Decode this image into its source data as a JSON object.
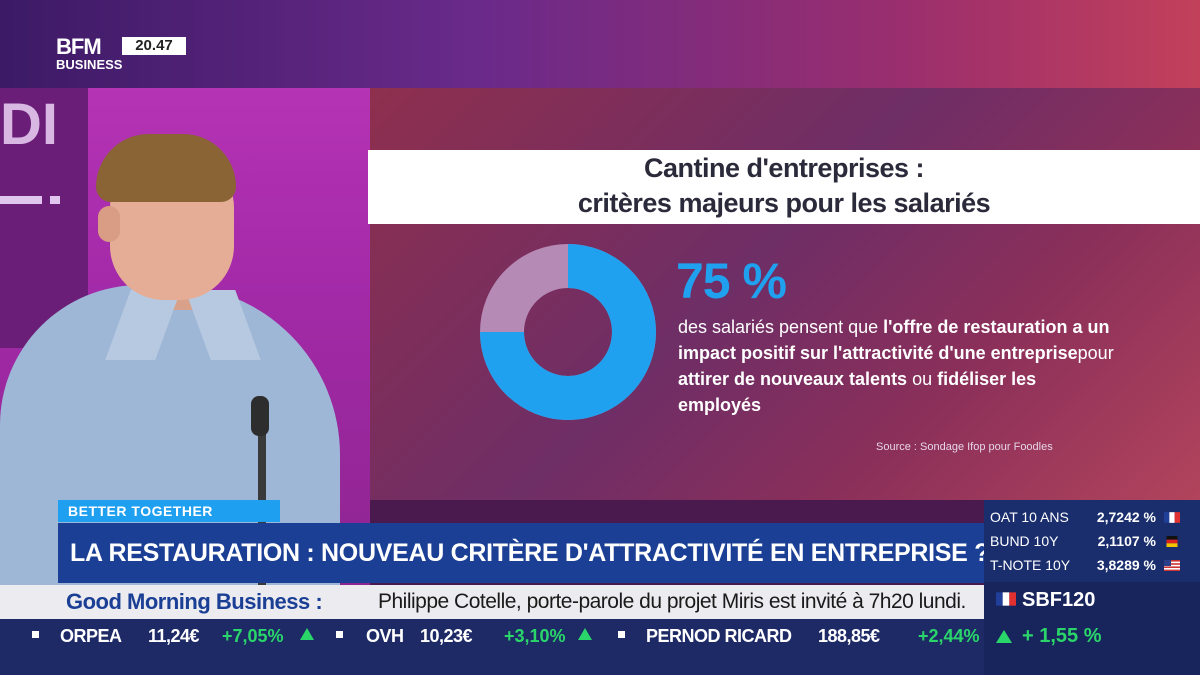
{
  "channel": {
    "logo_line1": "BFM",
    "logo_line2": "BUSINESS",
    "time": "20.47"
  },
  "studio": {
    "glyph": "DI"
  },
  "infographic": {
    "title_line1": "Cantine d'entreprises :",
    "title_line2": "critères majeurs pour les salariés",
    "percent_label": "75 %",
    "percent_value": 75,
    "desc_1": "des salariés pensent que ",
    "desc_2": "l'offre de restauration a un impact positif sur l'attractivité d'une entreprise",
    "desc_3": "pour ",
    "desc_4": "attirer de nouveaux talents",
    "desc_5": " ou ",
    "desc_6": "fidéliser les employés",
    "source": "Source : Sondage Ifop pour Foodles",
    "colors": {
      "accent": "#1fa1f0",
      "muted": "#b58ab5"
    }
  },
  "lower_third": {
    "tag": "BETTER TOGETHER",
    "headline": "LA RESTAURATION : NOUVEAU CRITÈRE D'ATTRACTIVITÉ EN ENTREPRISE ?"
  },
  "markets": [
    {
      "name": "OAT 10 ANS",
      "value": "2,7242 %",
      "flag": "france-flag"
    },
    {
      "name": "BUND 10Y",
      "value": "2,1107 %",
      "flag": "germany-flag"
    },
    {
      "name": "T-NOTE 10Y",
      "value": "3,8289 %",
      "flag": "usa-flag"
    }
  ],
  "ticker": {
    "program": "Good Morning Business :",
    "text": "Philippe Cotelle, porte-parole du projet Miris est invité à 7h20 lundi."
  },
  "stocks": [
    {
      "name": "ORPEA",
      "price": "11,24€",
      "change": "+7,05%"
    },
    {
      "name": "OVH",
      "price": "10,23€",
      "change": "+3,10%"
    },
    {
      "name": "PERNOD RICARD",
      "price": "188,85€",
      "change": "+2,44%"
    }
  ],
  "index": {
    "name": "SBF120",
    "change": "+ 1,55 %"
  }
}
